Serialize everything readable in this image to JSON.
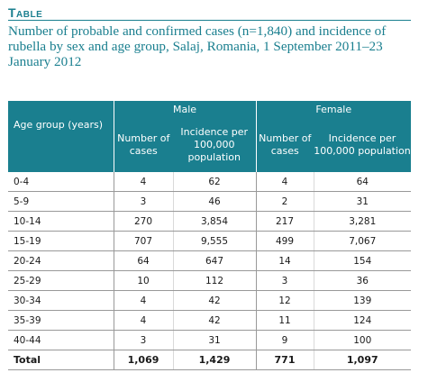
{
  "heading": "Table",
  "caption": "Number of probable and confirmed cases (n=1,840) and incidence of rubella by sex and age group, Salaj, Romania, 1 September 2011–23 January 2012",
  "header": {
    "age_group": "Age group (years)",
    "male": "Male",
    "female": "Female",
    "cases": "Number of cases",
    "incidence": "Incidence per 100,000 population"
  },
  "rows": [
    {
      "age": "0-4",
      "male_cases": "4",
      "male_inc": "62",
      "female_cases": "4",
      "female_inc": "64"
    },
    {
      "age": "5-9",
      "male_cases": "3",
      "male_inc": "46",
      "female_cases": "2",
      "female_inc": "31"
    },
    {
      "age": "10-14",
      "male_cases": "270",
      "male_inc": "3,854",
      "female_cases": "217",
      "female_inc": "3,281"
    },
    {
      "age": "15-19",
      "male_cases": "707",
      "male_inc": "9,555",
      "female_cases": "499",
      "female_inc": "7,067"
    },
    {
      "age": "20-24",
      "male_cases": "64",
      "male_inc": "647",
      "female_cases": "14",
      "female_inc": "154"
    },
    {
      "age": "25-29",
      "male_cases": "10",
      "male_inc": "112",
      "female_cases": "3",
      "female_inc": "36"
    },
    {
      "age": "30-34",
      "male_cases": "4",
      "male_inc": "42",
      "female_cases": "12",
      "female_inc": "139"
    },
    {
      "age": "35-39",
      "male_cases": "4",
      "male_inc": "42",
      "female_cases": "11",
      "female_inc": "124"
    },
    {
      "age": "40-44",
      "male_cases": "3",
      "male_inc": "31",
      "female_cases": "9",
      "female_inc": "100"
    }
  ],
  "total": {
    "label": "Total",
    "male_cases": "1,069",
    "male_inc": "1,429",
    "female_cases": "771",
    "female_inc": "1,097"
  },
  "colors": {
    "accent": "#1a7f8f",
    "rule": "#999999"
  }
}
